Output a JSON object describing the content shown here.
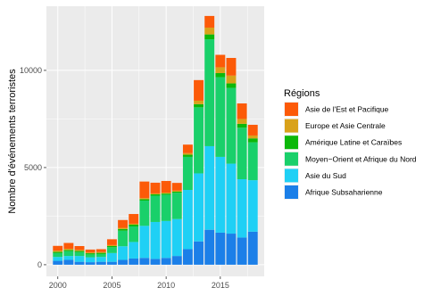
{
  "chart_data": {
    "type": "bar",
    "stacked": true,
    "title": "",
    "xlabel": "",
    "ylabel": "Nombre d'événements terroristes",
    "x": [
      2000,
      2001,
      2002,
      2003,
      2004,
      2005,
      2006,
      2007,
      2008,
      2009,
      2010,
      2011,
      2012,
      2013,
      2014,
      2015,
      2016,
      2017,
      2018
    ],
    "xticks": [
      2000,
      2005,
      2010,
      2015
    ],
    "yticks": [
      0,
      5000,
      10000
    ],
    "ylim": [
      -600,
      13300
    ],
    "grid": true,
    "legend_position": "right",
    "legend_title": "Régions",
    "series": [
      {
        "name": "Afrique Subsaharienne",
        "color": "#1b7fe8",
        "values": [
          200,
          250,
          150,
          130,
          150,
          150,
          250,
          320,
          350,
          300,
          350,
          450,
          800,
          1200,
          1800,
          1650,
          1600,
          1400,
          1700
        ]
      },
      {
        "name": "Asie du Sud",
        "color": "#1fd0f5",
        "values": [
          200,
          200,
          300,
          250,
          250,
          450,
          700,
          850,
          1650,
          1900,
          1900,
          1900,
          3050,
          3500,
          4300,
          3900,
          3600,
          3000,
          2650
        ]
      },
      {
        "name": "Moyen−Orient et Afrique du Nord",
        "color": "#19d06a",
        "values": [
          200,
          250,
          200,
          150,
          150,
          300,
          800,
          800,
          1300,
          1350,
          1350,
          1350,
          1700,
          3400,
          5500,
          4100,
          3900,
          2650,
          1950
        ]
      },
      {
        "name": "Amérique Latine et Caraïbes",
        "color": "#0cb80a",
        "values": [
          60,
          60,
          60,
          60,
          60,
          60,
          90,
          90,
          70,
          70,
          60,
          60,
          110,
          160,
          250,
          210,
          230,
          200,
          200
        ]
      },
      {
        "name": "Europe et Asie Centrale",
        "color": "#d9a21a",
        "values": [
          60,
          60,
          50,
          40,
          40,
          50,
          60,
          50,
          60,
          50,
          50,
          50,
          80,
          180,
          350,
          300,
          400,
          250,
          150
        ]
      },
      {
        "name": "Asie de l'Est et Pacifique",
        "color": "#fc5a08",
        "values": [
          250,
          300,
          200,
          150,
          150,
          300,
          400,
          500,
          850,
          550,
          600,
          400,
          440,
          1060,
          600,
          640,
          910,
          800,
          550
        ]
      }
    ]
  }
}
